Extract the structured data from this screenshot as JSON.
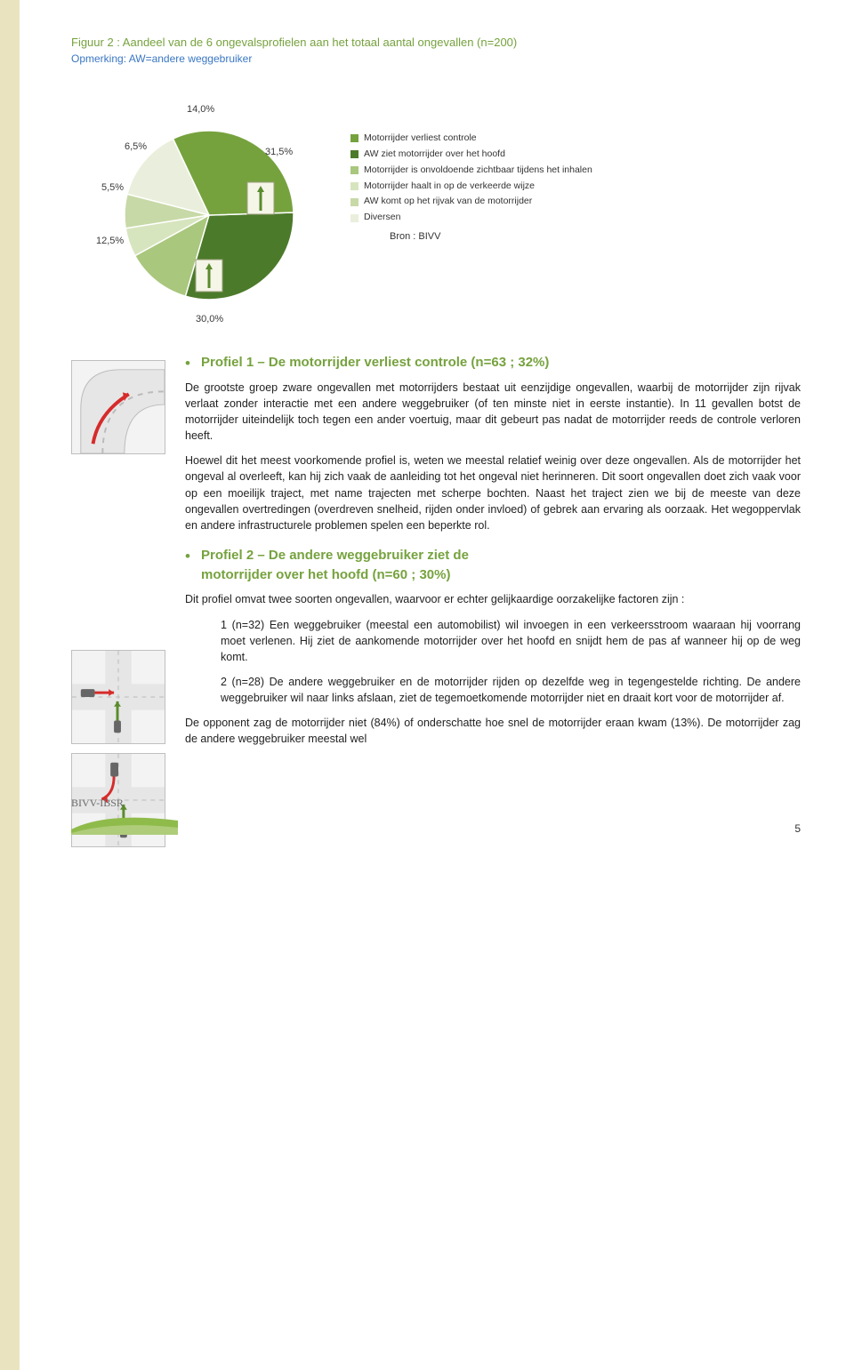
{
  "figure": {
    "title": "Figuur 2 : Aandeel van de 6 ongevalsprofielen aan het totaal aantal ongevallen (n=200)",
    "subtitle": "Opmerking: AW=andere weggebruiker",
    "source": "Bron : BIVV"
  },
  "pie": {
    "type": "pie",
    "background_color": "#ffffff",
    "label_fontsize": 11,
    "slices": [
      {
        "label": "31,5%",
        "value": 31.5,
        "color": "#76a23e"
      },
      {
        "label": "30,0%",
        "value": 30.0,
        "color": "#4c7a2b"
      },
      {
        "label": "12,5%",
        "value": 12.5,
        "color": "#a9c77d"
      },
      {
        "label": "5,5%",
        "value": 5.5,
        "color": "#d7e5be"
      },
      {
        "label": "6,5%",
        "value": 6.5,
        "color": "#c7d9a6"
      },
      {
        "label": "14,0%",
        "value": 14.0,
        "color": "#e9efdc"
      }
    ],
    "legend_items": [
      {
        "text": "Motorrijder verliest controle",
        "color": "#76a23e"
      },
      {
        "text": "AW ziet motorrijder over het hoofd",
        "color": "#4c7a2b"
      },
      {
        "text": "Motorrijder is onvoldoende zichtbaar tijdens het inhalen",
        "color": "#a9c77d"
      },
      {
        "text": "Motorrijder haalt in op de verkeerde wijze",
        "color": "#d7e5be"
      },
      {
        "text": "AW komt op het rijvak van de motorrijder",
        "color": "#c7d9a6"
      },
      {
        "text": "Diversen",
        "color": "#e9efdc"
      }
    ]
  },
  "profile1": {
    "heading": "Profiel 1 – De motorrijder verliest controle (n=63 ; 32%)",
    "p1": "De grootste groep zware ongevallen met motorrijders bestaat uit eenzijdige ongevallen, waarbij de motorrijder zijn rijvak verlaat zonder interactie met een andere weggebruiker (of ten minste niet in eerste instantie). In 11 gevallen botst de motorrijder uiteindelijk toch tegen een ander voertuig, maar dit gebeurt pas nadat de motorrijder reeds de controle verloren heeft.",
    "p2": "Hoewel dit het meest voorkomende profiel is, weten we meestal relatief weinig over deze ongevallen. Als de motorrijder het ongeval al overleeft, kan hij zich vaak de aanleiding tot het ongeval niet herinneren. Dit soort ongevallen doet zich vaak voor op een moeilijk traject, met name trajecten met scherpe bochten. Naast het traject zien we bij de meeste van deze ongevallen overtredingen (overdreven snelheid, rijden onder invloed) of gebrek aan ervaring als oorzaak. Het wegoppervlak en andere infrastructurele problemen spelen een beperkte rol."
  },
  "profile2": {
    "heading_l1": "Profiel 2 – De andere weggebruiker ziet de",
    "heading_l2": "motorrijder over het hoofd (n=60 ; 30%)",
    "intro": "Dit profiel omvat twee soorten ongevallen, waarvoor er echter gelijkaardige oorzakelijke factoren zijn :",
    "item1": "1 (n=32) Een weggebruiker (meestal een automobilist) wil invoegen in een verkeersstroom waaraan hij voorrang moet verlenen. Hij ziet de aankomende motorrijder over het hoofd en snijdt hem de pas af wanneer hij op de weg komt.",
    "item2": "2 (n=28) De andere weggebruiker en de motorrijder rijden op dezelfde weg in tegengestelde richting. De andere weggebruiker wil naar links afslaan, ziet de tegemoetkomende motorrijder niet en draait kort voor de motorrijder af.",
    "closing": "De opponent zag de motorrijder niet (84%) of onderschatte hoe snel de motorrijder eraan kwam (13%). De motorrijder zag de andere weggebruiker meestal wel"
  },
  "footer": {
    "logo_text": "BIVV-IBSR",
    "page_number": "5"
  },
  "colors": {
    "accent_green": "#76a23e",
    "accent_blue": "#3a77c4",
    "band": "#e9e3bf",
    "thumb_bg": "#f5f5f5",
    "thumb_border": "#bfbfbf"
  }
}
